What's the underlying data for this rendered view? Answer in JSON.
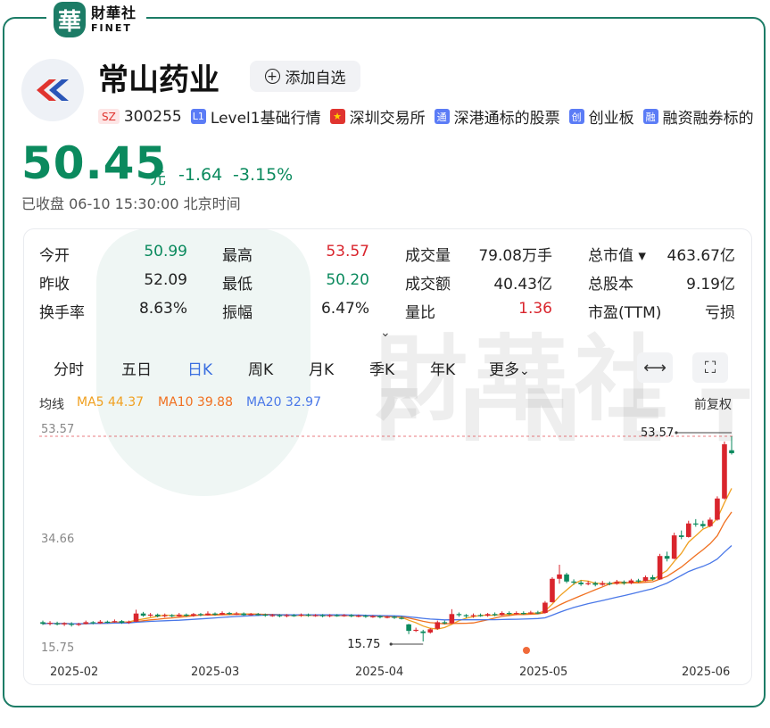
{
  "brand": {
    "seal": "華",
    "name_cn": "財華社",
    "name_en": "FINET"
  },
  "stock": {
    "name": "常山药业",
    "add_watchlist": "添加自选",
    "tags": [
      {
        "badge": "SZ",
        "text": "300255"
      },
      {
        "badge": "L1",
        "text": "Level1基础行情"
      },
      {
        "badge": "★",
        "text": "深圳交易所"
      },
      {
        "badge": "通",
        "text": "深港通标的股票"
      },
      {
        "badge": "创",
        "text": "创业板"
      },
      {
        "badge": "融",
        "text": "融资融券标的"
      }
    ],
    "price": "50.45",
    "unit": "元",
    "change": "-1.64",
    "change_pct": "-3.15%",
    "status": "已收盘 06-10 15:30:00 北京时间"
  },
  "stats": [
    [
      {
        "label": "今开",
        "value": "50.99",
        "color": "green"
      },
      {
        "label": "最高",
        "value": "53.57",
        "color": "red"
      },
      {
        "label": "成交量",
        "value": "79.08万手",
        "color": ""
      },
      {
        "label": "总市值 ▾",
        "value": "463.67亿",
        "color": ""
      }
    ],
    [
      {
        "label": "昨收",
        "value": "52.09",
        "color": ""
      },
      {
        "label": "最低",
        "value": "50.20",
        "color": "green"
      },
      {
        "label": "成交额",
        "value": "40.43亿",
        "color": ""
      },
      {
        "label": "总股本",
        "value": "9.19亿",
        "color": ""
      }
    ],
    [
      {
        "label": "换手率",
        "value": "8.63%",
        "color": ""
      },
      {
        "label": "振幅",
        "value": "6.47%",
        "color": ""
      },
      {
        "label": "量比",
        "value": "1.36",
        "color": "red"
      },
      {
        "label": "市盈(TTM)",
        "value": "亏损",
        "color": ""
      }
    ]
  ],
  "expand_icon": "chevron-down",
  "tabs": [
    "分时",
    "五日",
    "日K",
    "周K",
    "月K",
    "季K",
    "年K",
    "更多"
  ],
  "active_tab": "日K",
  "ma": {
    "label": "均线",
    "ma5": "MA5 44.37",
    "ma10": "MA10 39.88",
    "ma20": "MA20 32.97",
    "adjust": "前复权"
  },
  "colors": {
    "up": "#d9252d",
    "down": "#0b8a5e",
    "ma5": "#f0a020",
    "ma10": "#f07020",
    "ma20": "#4a78e8",
    "brand": "#1c7c66"
  },
  "chart_data": {
    "type": "candlestick",
    "y_ticks": [
      "53.57",
      "34.66",
      "15.75"
    ],
    "ylim": [
      15.75,
      53.57
    ],
    "x_ticks": [
      "2025-02",
      "2025-03",
      "2025-04",
      "2025-05",
      "2025-06"
    ],
    "annotations": {
      "high": "53.57",
      "low": "15.75"
    },
    "candles": [
      [
        19.3,
        19.0,
        19.6,
        18.8
      ],
      [
        19.0,
        19.2,
        19.5,
        18.7
      ],
      [
        19.1,
        18.9,
        19.4,
        18.7
      ],
      [
        18.9,
        19.1,
        19.3,
        18.6
      ],
      [
        19.0,
        18.8,
        19.3,
        18.5
      ],
      [
        18.8,
        19.0,
        19.2,
        18.6
      ],
      [
        19.0,
        19.3,
        19.6,
        18.9
      ],
      [
        19.3,
        19.1,
        19.5,
        18.9
      ],
      [
        19.1,
        19.4,
        19.7,
        19.0
      ],
      [
        19.4,
        19.3,
        19.6,
        19.1
      ],
      [
        19.3,
        19.5,
        19.8,
        19.2
      ],
      [
        19.5,
        19.2,
        19.7,
        19.0
      ],
      [
        19.2,
        19.4,
        19.6,
        19.0
      ],
      [
        19.4,
        20.9,
        21.6,
        19.3
      ],
      [
        20.9,
        20.5,
        21.2,
        20.3
      ],
      [
        20.5,
        20.7,
        21.0,
        20.3
      ],
      [
        20.7,
        20.4,
        20.9,
        20.2
      ],
      [
        20.4,
        20.6,
        20.9,
        20.2
      ],
      [
        20.6,
        20.4,
        20.8,
        20.2
      ],
      [
        20.4,
        20.7,
        21.0,
        20.3
      ],
      [
        20.7,
        20.5,
        20.9,
        20.3
      ],
      [
        20.5,
        20.8,
        21.0,
        20.3
      ],
      [
        20.8,
        20.6,
        21.0,
        20.4
      ],
      [
        20.6,
        20.9,
        21.3,
        20.5
      ],
      [
        20.9,
        20.7,
        21.1,
        20.5
      ],
      [
        20.7,
        21.0,
        21.3,
        20.6
      ],
      [
        21.0,
        20.8,
        21.2,
        20.6
      ],
      [
        20.8,
        20.9,
        21.2,
        20.6
      ],
      [
        20.9,
        20.6,
        21.1,
        20.5
      ],
      [
        20.6,
        20.8,
        21.0,
        20.5
      ],
      [
        20.8,
        20.7,
        21.0,
        20.5
      ],
      [
        20.7,
        20.5,
        20.9,
        20.3
      ],
      [
        20.5,
        20.6,
        20.8,
        20.3
      ],
      [
        20.6,
        20.4,
        20.8,
        20.2
      ],
      [
        20.4,
        20.6,
        20.8,
        20.2
      ],
      [
        20.6,
        20.5,
        20.8,
        20.3
      ],
      [
        20.5,
        20.7,
        20.9,
        20.3
      ],
      [
        20.7,
        20.5,
        20.9,
        20.3
      ],
      [
        20.5,
        20.6,
        20.8,
        20.3
      ],
      [
        20.6,
        20.4,
        20.8,
        20.2
      ],
      [
        20.4,
        20.6,
        20.8,
        20.2
      ],
      [
        20.6,
        20.5,
        20.8,
        20.3
      ],
      [
        20.5,
        20.6,
        20.8,
        20.3
      ],
      [
        20.6,
        20.4,
        20.8,
        20.2
      ],
      [
        20.4,
        20.5,
        20.7,
        20.2
      ],
      [
        20.5,
        20.3,
        20.7,
        20.1
      ],
      [
        20.3,
        20.4,
        20.6,
        20.1
      ],
      [
        20.4,
        20.2,
        20.6,
        20.0
      ],
      [
        20.2,
        20.3,
        20.5,
        20.0
      ],
      [
        20.3,
        20.1,
        20.5,
        19.9
      ],
      [
        20.1,
        20.0,
        20.4,
        19.8
      ],
      [
        18.9,
        17.7,
        19.0,
        17.1
      ],
      [
        17.8,
        17.9,
        18.3,
        17.5
      ],
      [
        17.6,
        17.3,
        17.9,
        15.75
      ],
      [
        17.4,
        18.0,
        18.2,
        17.2
      ],
      [
        18.1,
        19.3,
        19.6,
        17.9
      ],
      [
        19.3,
        19.1,
        19.6,
        18.9
      ],
      [
        19.1,
        20.8,
        21.7,
        19.0
      ],
      [
        20.8,
        20.6,
        21.1,
        20.3
      ],
      [
        20.6,
        20.4,
        20.8,
        20.1
      ],
      [
        20.4,
        20.6,
        20.9,
        20.1
      ],
      [
        20.6,
        20.5,
        20.9,
        20.3
      ],
      [
        20.5,
        20.8,
        21.0,
        20.3
      ],
      [
        20.8,
        20.6,
        21.1,
        20.4
      ],
      [
        20.6,
        21.0,
        21.3,
        20.5
      ],
      [
        21.0,
        20.8,
        21.3,
        20.6
      ],
      [
        20.8,
        21.0,
        21.3,
        20.6
      ],
      [
        21.0,
        20.9,
        21.3,
        20.7
      ],
      [
        20.9,
        21.1,
        21.4,
        20.8
      ],
      [
        21.1,
        21.0,
        21.4,
        20.8
      ],
      [
        21.0,
        22.9,
        23.2,
        20.9
      ],
      [
        23.0,
        27.3,
        27.6,
        22.9
      ],
      [
        27.3,
        28.1,
        29.9,
        26.4
      ],
      [
        28.1,
        26.8,
        28.4,
        26.5
      ],
      [
        26.8,
        26.6,
        27.2,
        26.2
      ],
      [
        26.6,
        26.3,
        27.0,
        26.0
      ],
      [
        26.3,
        26.5,
        26.9,
        26.1
      ],
      [
        26.5,
        26.2,
        26.8,
        25.9
      ],
      [
        26.2,
        26.5,
        26.9,
        26.0
      ],
      [
        26.5,
        26.4,
        26.8,
        26.1
      ],
      [
        26.4,
        26.7,
        27.1,
        26.2
      ],
      [
        26.7,
        26.5,
        27.0,
        26.2
      ],
      [
        26.5,
        27.0,
        27.3,
        26.3
      ],
      [
        27.0,
        26.9,
        27.3,
        26.6
      ],
      [
        26.9,
        27.6,
        27.9,
        26.8
      ],
      [
        27.6,
        27.2,
        28.0,
        27.0
      ],
      [
        27.2,
        31.5,
        31.9,
        27.1
      ],
      [
        31.5,
        31.0,
        32.3,
        30.5
      ],
      [
        31.0,
        35.3,
        35.8,
        30.9
      ],
      [
        35.3,
        35.0,
        36.2,
        34.6
      ],
      [
        35.0,
        37.5,
        38.0,
        34.9
      ],
      [
        37.5,
        37.4,
        38.3,
        36.9
      ],
      [
        37.4,
        37.0,
        38.0,
        36.6
      ],
      [
        37.0,
        38.2,
        38.6,
        36.8
      ],
      [
        38.2,
        42.1,
        42.5,
        38.0
      ],
      [
        42.1,
        52.1,
        52.6,
        41.9
      ],
      [
        50.99,
        50.45,
        53.57,
        50.2
      ]
    ],
    "ma5_end": 44.37,
    "ma10_end": 39.88,
    "ma20_end": 32.97
  }
}
